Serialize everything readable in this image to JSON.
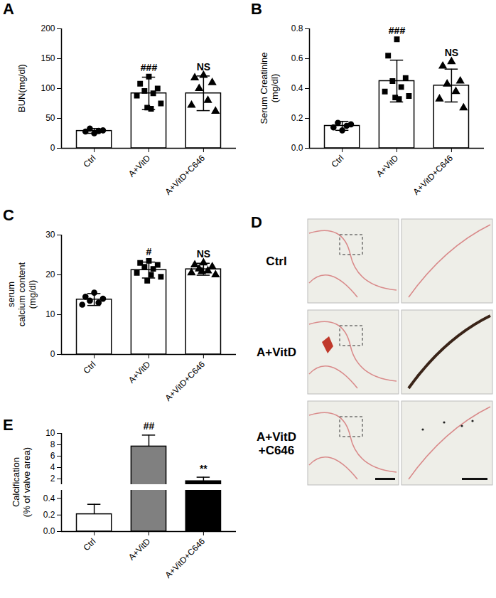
{
  "chart_data": [
    {
      "panel": "A",
      "type": "bar",
      "ylabel": "BUN(mg/dl)",
      "categories": [
        "Ctrl",
        "A+VitD",
        "A+VitD+C646"
      ],
      "values": [
        29,
        92,
        92
      ],
      "errors": [
        4,
        27,
        29
      ],
      "colors": [
        "#ffffff",
        "#ffffff",
        "#ffffff"
      ],
      "points": [
        {
          "marker": "circle",
          "values": [
            25,
            28,
            30,
            33,
            29
          ]
        },
        {
          "marker": "square",
          "values": [
            120,
            108,
            100,
            96,
            92,
            88,
            75,
            68,
            66
          ]
        },
        {
          "marker": "triangle",
          "values": [
            122,
            118,
            110,
            100,
            80,
            72,
            62
          ]
        }
      ],
      "annotations": [
        {
          "category": "A+VitD",
          "text": "###"
        },
        {
          "category": "A+VitD+C646",
          "text": "NS"
        }
      ],
      "ylim": [
        0,
        200
      ],
      "yticks": [
        0,
        50,
        100,
        150,
        200
      ]
    },
    {
      "panel": "B",
      "type": "bar",
      "ylabel": "Serum Creatinine\n(mg/dl)",
      "categories": [
        "Ctrl",
        "A+VitD",
        "A+VitD+C646"
      ],
      "values": [
        0.15,
        0.45,
        0.42
      ],
      "errors": [
        0.03,
        0.14,
        0.11
      ],
      "colors": [
        "#ffffff",
        "#ffffff",
        "#ffffff"
      ],
      "points": [
        {
          "marker": "circle",
          "values": [
            0.12,
            0.14,
            0.16,
            0.17,
            0.15
          ]
        },
        {
          "marker": "square",
          "values": [
            0.73,
            0.62,
            0.47,
            0.45,
            0.41,
            0.38,
            0.35,
            0.34,
            0.33
          ]
        },
        {
          "marker": "triangle",
          "values": [
            0.58,
            0.55,
            0.45,
            0.43,
            0.38,
            0.33,
            0.27
          ]
        }
      ],
      "annotations": [
        {
          "category": "A+VitD",
          "text": "###"
        },
        {
          "category": "A+VitD+C646",
          "text": "NS"
        }
      ],
      "ylim": [
        0,
        0.8
      ],
      "yticks": [
        {
          "value": 0,
          "label": "0.0"
        },
        {
          "value": 0.2,
          "label": "0.2"
        },
        {
          "value": 0.4,
          "label": "0.4"
        },
        {
          "value": 0.6,
          "label": "0.6"
        },
        {
          "value": 0.8,
          "label": "0.8"
        }
      ]
    },
    {
      "panel": "C",
      "type": "bar",
      "ylabel": "serum\ncalcium content\n(mg/dl)",
      "categories": [
        "Ctrl",
        "A+VitD",
        "A+VitD+C646"
      ],
      "values": [
        13.8,
        21.2,
        21.4
      ],
      "errors": [
        1.5,
        2,
        1.5
      ],
      "colors": [
        "#ffffff",
        "#ffffff",
        "#ffffff"
      ],
      "points": [
        {
          "marker": "circle",
          "values": [
            15.5,
            14.5,
            14,
            13.5,
            13,
            12.5
          ]
        },
        {
          "marker": "square",
          "values": [
            23.5,
            23,
            22.5,
            22,
            21.5,
            20.5,
            19.5,
            18.5,
            20
          ]
        },
        {
          "marker": "triangle",
          "values": [
            23,
            22.5,
            22,
            21.5,
            21,
            20.5,
            20,
            20.8
          ]
        }
      ],
      "annotations": [
        {
          "category": "A+VitD",
          "text": "#"
        },
        {
          "category": "A+VitD+C646",
          "text": "NS"
        }
      ],
      "ylim": [
        0,
        30
      ],
      "yticks": [
        0,
        10,
        20,
        30
      ]
    },
    {
      "panel": "D",
      "type": "image",
      "row_labels": [
        "Ctrl",
        "A+VitD",
        "A+VitD\n+C646"
      ]
    },
    {
      "panel": "E",
      "type": "bar",
      "ylabel": "Calcification\n(% of valve area)",
      "categories": [
        "Ctrl",
        "A+VitD",
        "A+VitD+C646"
      ],
      "values": [
        0.21,
        7.7,
        1.6
      ],
      "errors": [
        0.12,
        2,
        0.7
      ],
      "colors": [
        "#ffffff",
        "#808080",
        "#000000"
      ],
      "annotations": [
        {
          "category": "A+VitD",
          "text": "##"
        },
        {
          "category": "A+VitD+C646",
          "text": "**"
        }
      ],
      "ylim": [
        0,
        10
      ],
      "y_break": [
        0.5,
        1
      ],
      "yticks": [
        {
          "value": 0,
          "label": "0.0"
        },
        {
          "value": 0.2,
          "label": "0.2"
        },
        {
          "value": 0.4,
          "label": "0.4"
        },
        2,
        4,
        6,
        8,
        10
      ]
    }
  ]
}
